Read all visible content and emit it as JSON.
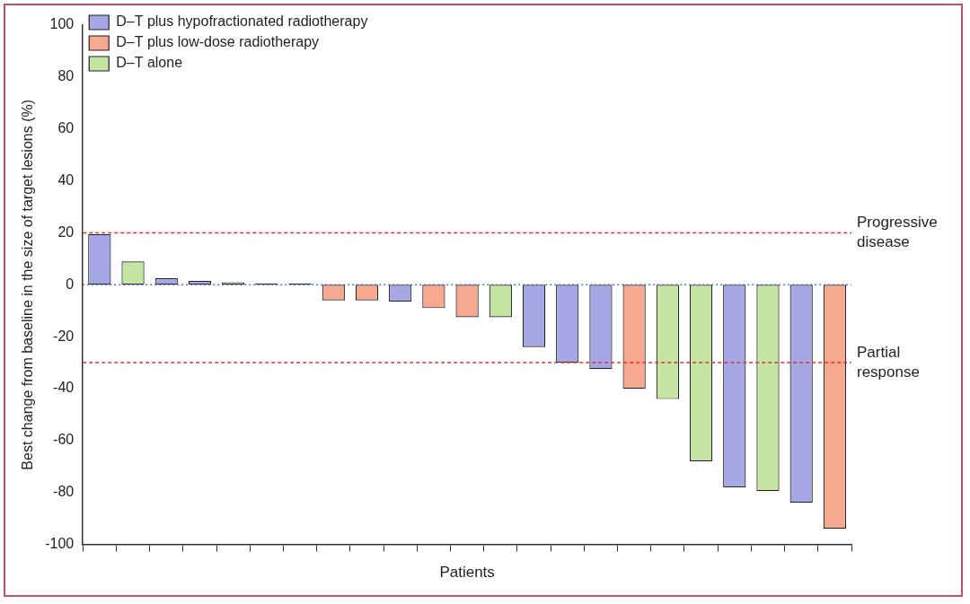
{
  "chart_data": {
    "type": "bar",
    "categories": [
      null,
      null,
      null,
      null,
      null,
      null,
      null,
      null,
      null,
      null,
      null,
      null,
      null,
      null,
      null,
      null,
      null,
      null,
      null,
      null,
      null,
      null,
      null
    ],
    "series": [
      {
        "name": "D–T plus hypofractionated radiotherapy",
        "color": "#a6a8e6",
        "values": [
          19.5,
          null,
          2.5,
          1.5,
          null,
          null,
          null,
          null,
          null,
          -6.5,
          null,
          null,
          null,
          -24,
          -30,
          -32.5,
          null,
          null,
          null,
          -78,
          null,
          -84,
          null
        ]
      },
      {
        "name": "D–T plus low-dose radiotherapy",
        "color": "#f7a98f",
        "values": [
          null,
          null,
          null,
          null,
          null,
          null,
          null,
          -6,
          -6,
          null,
          -9,
          -12.5,
          null,
          null,
          null,
          null,
          -40,
          null,
          null,
          null,
          null,
          null,
          -94
        ]
      },
      {
        "name": "D–T alone",
        "color": "#c4e6a2",
        "values": [
          null,
          9,
          null,
          null,
          1,
          0.5,
          0.5,
          null,
          null,
          null,
          null,
          null,
          -12.5,
          null,
          null,
          null,
          null,
          -44,
          -68,
          null,
          -79.5,
          null,
          null
        ]
      }
    ],
    "x_label": "Patients",
    "y_label": "Best change from baseline in the size of target lesions (%)",
    "ylim": [
      -100,
      100
    ],
    "yticks": [
      -100,
      -80,
      -60,
      -40,
      -20,
      0,
      20,
      40,
      60,
      80,
      100
    ],
    "grid": false,
    "legend": "top left",
    "tick_labels": "y",
    "reference_lines": [
      {
        "y": 20,
        "label": "Progressive disease",
        "color": "#e0302a",
        "line_style": "dashed"
      },
      {
        "y": -30,
        "label": "Partial response",
        "color": "#e0302a",
        "line_style": "dashed"
      },
      {
        "y": 0,
        "color": "#5a6fb0",
        "line_style": "dotted"
      }
    ]
  }
}
